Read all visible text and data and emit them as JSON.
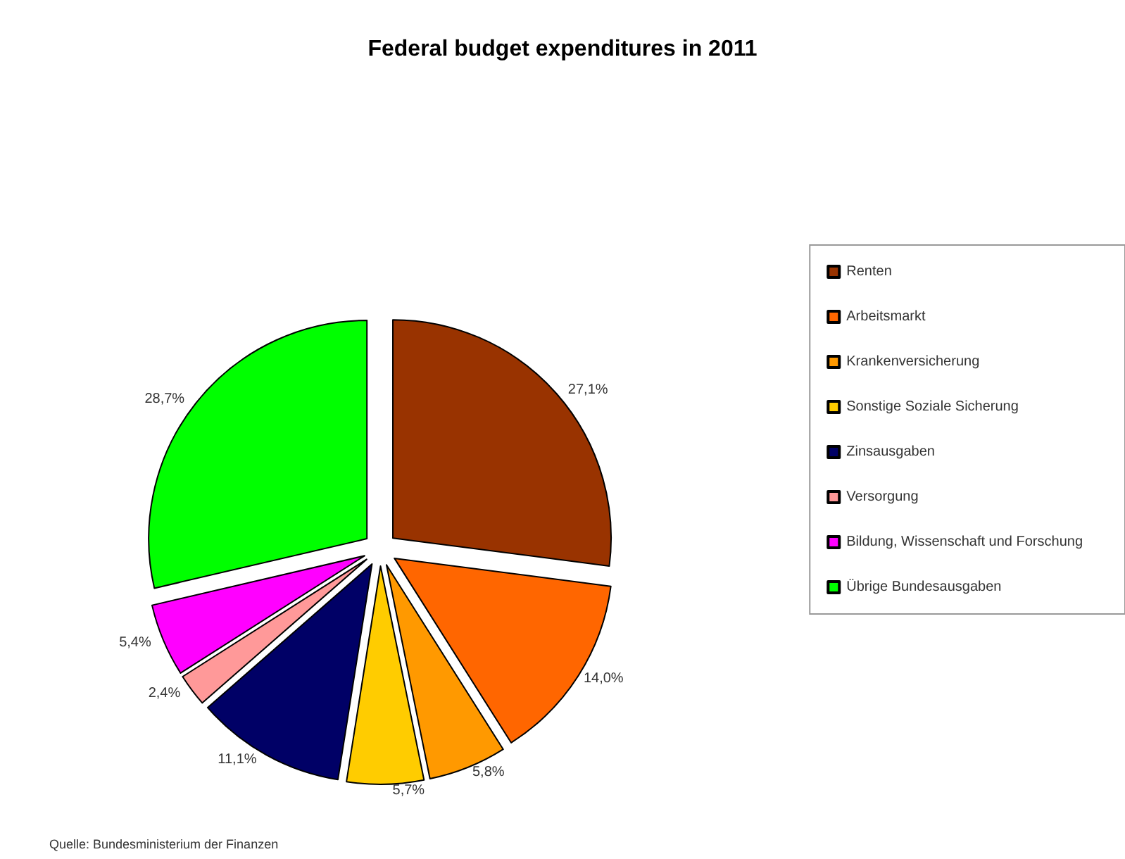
{
  "chart_data": {
    "type": "pie",
    "title": "Federal budget expenditures in 2011",
    "categories": [
      "Renten",
      "Arbeitsmarkt",
      "Krankenversicherung",
      "Sonstige Soziale Sicherung",
      "Zinsausgaben",
      "Versorgung",
      "Bildung, Wissenschaft und Forschung",
      "Übrige Bundesausgaben"
    ],
    "values": [
      27.1,
      14.0,
      5.8,
      5.7,
      11.1,
      2.4,
      5.4,
      28.7
    ],
    "value_labels": [
      "27,1%",
      "14,0%",
      "5,8%",
      "5,7%",
      "11,1%",
      "2,4%",
      "5,4%",
      "28,7%"
    ],
    "colors": [
      "#993300",
      "#ff6600",
      "#ff9900",
      "#ffcc00",
      "#000066",
      "#ff9999",
      "#ff00ff",
      "#00ff00"
    ],
    "legend": "right",
    "annotations": [
      "Quelle: Bundesministerium der Finanzen"
    ]
  }
}
